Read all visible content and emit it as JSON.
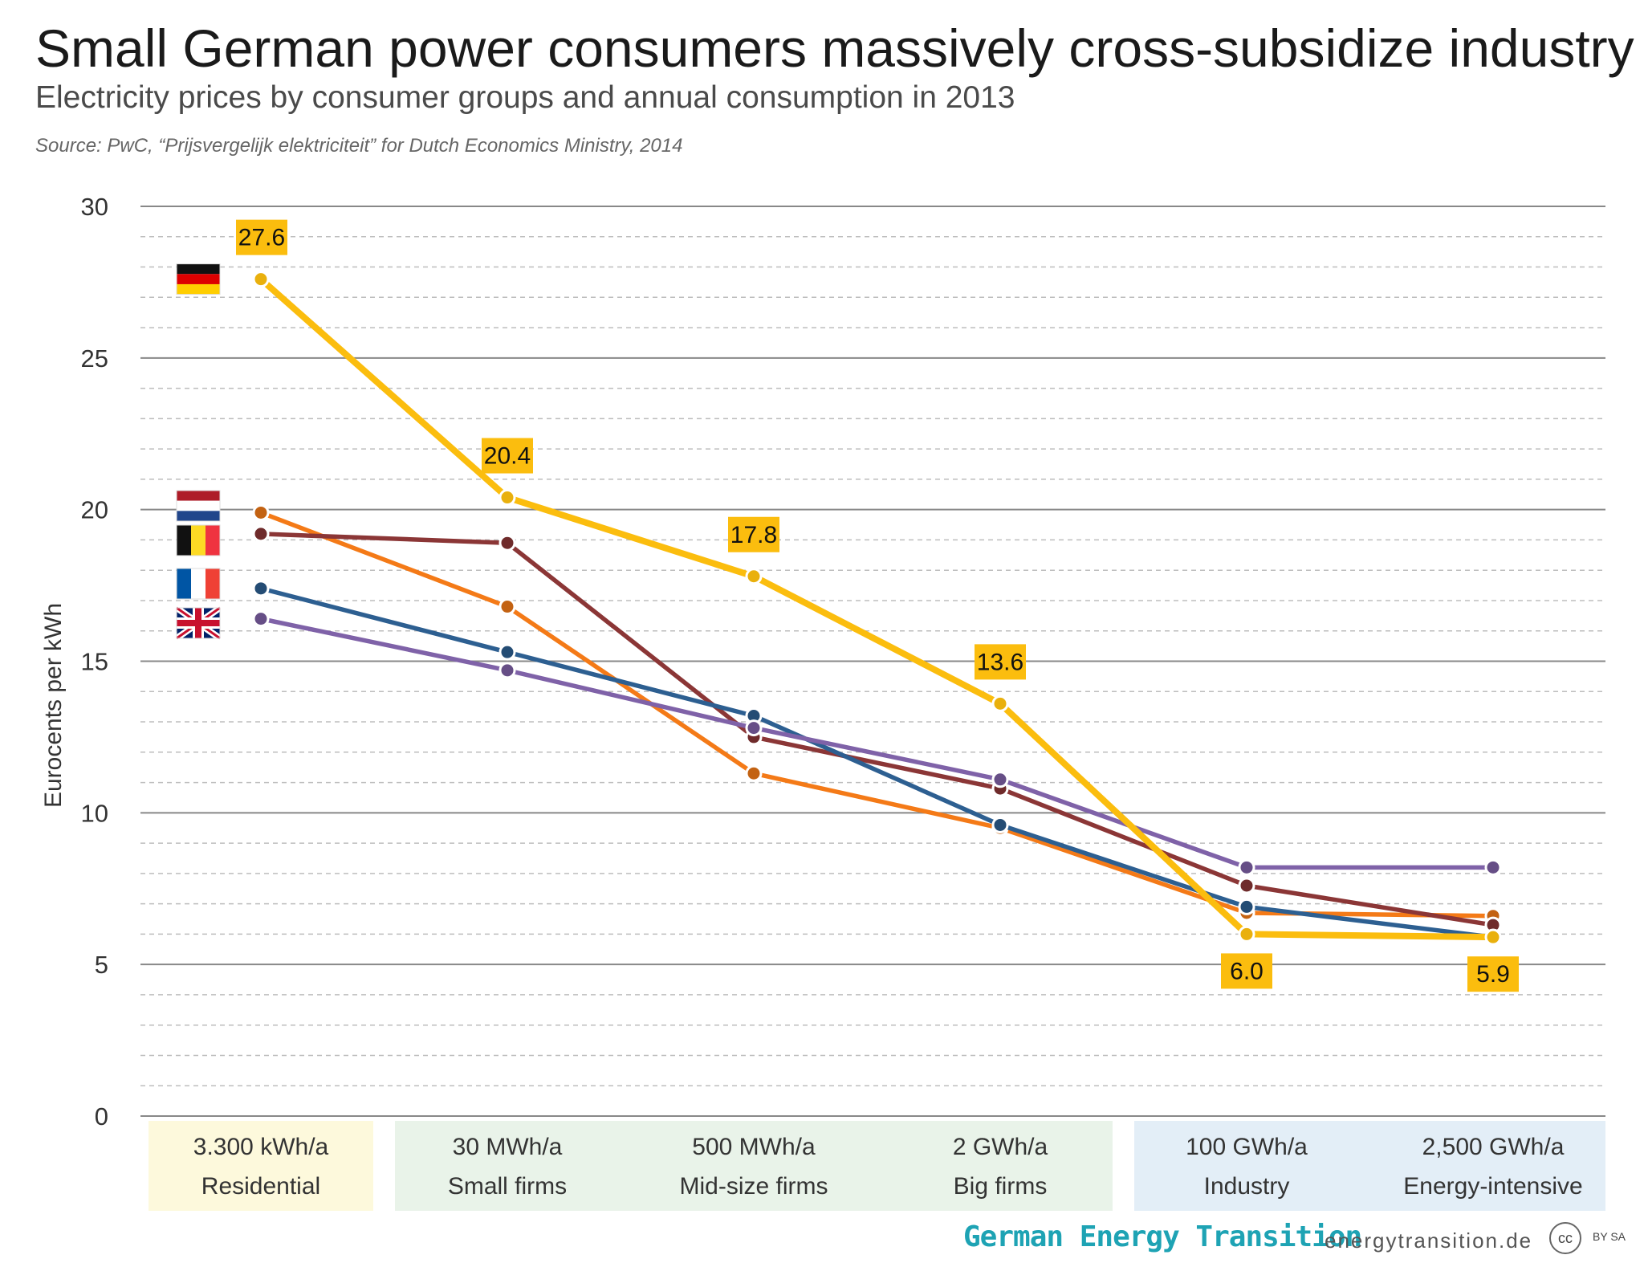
{
  "header": {
    "title": "Small German power consumers massively cross-subsidize industry",
    "subtitle": "Electricity prices by consumer groups and annual consumption in 2013",
    "source": "Source: PwC, “Prijsvergelijk elektriciteit” for Dutch Economics Ministry, 2014"
  },
  "footer": {
    "brand": "German Energy Transition",
    "site": "energytransition.de",
    "cc": "cc",
    "cc_by": "BY SA"
  },
  "chart_data": {
    "type": "line",
    "ylabel": "Eurocents per kWh",
    "ylim": [
      0,
      30
    ],
    "yticks": [
      0,
      5,
      10,
      15,
      20,
      25,
      30
    ],
    "grid": true,
    "categories": [
      {
        "top": "3.300 kWh/a",
        "bottom": "Residential",
        "group": "residential"
      },
      {
        "top": "30 MWh/a",
        "bottom": "Small firms",
        "group": "firms"
      },
      {
        "top": "500 MWh/a",
        "bottom": "Mid-size firms",
        "group": "firms"
      },
      {
        "top": "2 GWh/a",
        "bottom": "Big firms",
        "group": "firms"
      },
      {
        "top": "100 GWh/a",
        "bottom": "Industry",
        "group": "industry"
      },
      {
        "top": "2,500 GWh/a",
        "bottom": "Energy-intensive",
        "group": "industry"
      }
    ],
    "group_colors": {
      "residential": "#fdf9dc",
      "firms": "#e9f3e9",
      "industry": "#e3eef7"
    },
    "series": [
      {
        "flag": "netherlands",
        "color": "#f47a17",
        "values": [
          19.9,
          16.8,
          11.3,
          9.5,
          6.7,
          6.6
        ]
      },
      {
        "flag": "belgium",
        "color": "#8b3636",
        "values": [
          19.2,
          18.9,
          12.5,
          10.8,
          7.6,
          6.3
        ]
      },
      {
        "flag": "france",
        "color": "#2d5f91",
        "values": [
          17.4,
          15.3,
          13.2,
          9.6,
          6.9,
          5.9
        ]
      },
      {
        "flag": "uk",
        "color": "#7f62a8",
        "values": [
          16.4,
          14.7,
          12.8,
          11.1,
          8.2,
          8.2
        ]
      },
      {
        "flag": "germany",
        "color": "#fbbd0e",
        "values": [
          27.6,
          20.4,
          17.8,
          13.6,
          6.0,
          5.9
        ],
        "labels": [
          "27.6",
          "20.4",
          "17.8",
          "13.6",
          "6.0",
          "5.9"
        ],
        "label_positions": [
          "above",
          "above",
          "above",
          "above",
          "below",
          "below"
        ]
      }
    ]
  }
}
